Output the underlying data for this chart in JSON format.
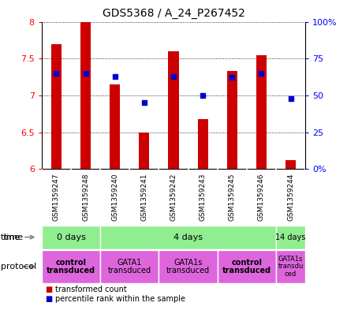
{
  "title": "GDS5368 / A_24_P267452",
  "samples": [
    "GSM1359247",
    "GSM1359248",
    "GSM1359240",
    "GSM1359241",
    "GSM1359242",
    "GSM1359243",
    "GSM1359245",
    "GSM1359246",
    "GSM1359244"
  ],
  "transformed_counts": [
    7.7,
    8.0,
    7.15,
    6.5,
    7.6,
    6.68,
    7.33,
    7.55,
    6.12
  ],
  "percentile_ranks": [
    65,
    65,
    63,
    45,
    63,
    50,
    62,
    65,
    48
  ],
  "ylim": [
    6.0,
    8.0
  ],
  "yticks": [
    6.0,
    6.5,
    7.0,
    7.5,
    8.0
  ],
  "y2ticks": [
    0,
    25,
    50,
    75,
    100
  ],
  "bar_color": "#cc0000",
  "dot_color": "#0000cc",
  "bar_bottom": 6.0,
  "sample_bg_color": "#c8c8c8",
  "time_bg_color": "#90ee90",
  "proto_bg_color": "#dd66dd",
  "time_groups": [
    {
      "label": "0 days",
      "cols": [
        0,
        1
      ]
    },
    {
      "label": "4 days",
      "cols": [
        2,
        3,
        4,
        5,
        6,
        7
      ]
    },
    {
      "label": "14 days",
      "cols": [
        8
      ]
    }
  ],
  "protocol_groups": [
    {
      "label": "control\ntransduced",
      "cols": [
        0,
        1
      ],
      "bold": true
    },
    {
      "label": "GATA1\ntransduced",
      "cols": [
        2,
        3
      ],
      "bold": false
    },
    {
      "label": "GATA1s\ntransduced",
      "cols": [
        4,
        5
      ],
      "bold": false
    },
    {
      "label": "control\ntransduced",
      "cols": [
        6,
        7
      ],
      "bold": true
    },
    {
      "label": "GATA1s\ntransdu\nced",
      "cols": [
        8
      ],
      "bold": false
    }
  ],
  "time_label": "time",
  "protocol_label": "protocol",
  "legend_items": [
    {
      "color": "#cc0000",
      "label": "transformed count"
    },
    {
      "color": "#0000cc",
      "label": "percentile rank within the sample"
    }
  ]
}
